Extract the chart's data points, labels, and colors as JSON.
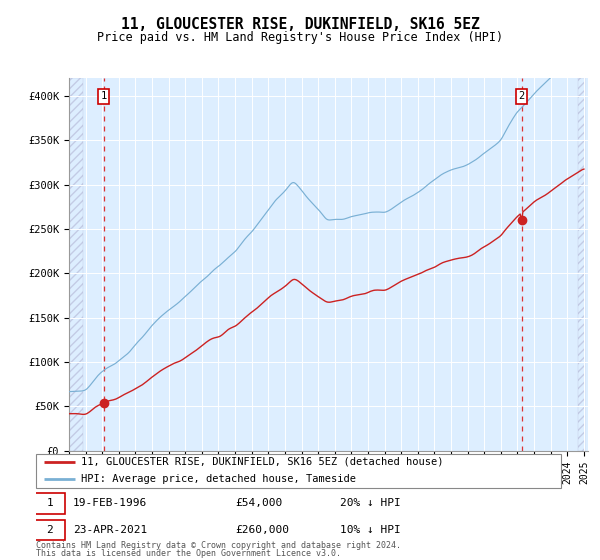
{
  "title": "11, GLOUCESTER RISE, DUKINFIELD, SK16 5EZ",
  "subtitle": "Price paid vs. HM Land Registry's House Price Index (HPI)",
  "legend_line1": "11, GLOUCESTER RISE, DUKINFIELD, SK16 5EZ (detached house)",
  "legend_line2": "HPI: Average price, detached house, Tameside",
  "footnote1": "Contains HM Land Registry data © Crown copyright and database right 2024.",
  "footnote2": "This data is licensed under the Open Government Licence v3.0.",
  "hpi_color": "#7ab0d4",
  "price_color": "#cc2222",
  "marker_color": "#cc2222",
  "bg_color": "#ddeeff",
  "grid_color": "#ffffff",
  "vline_color": "#dd3333",
  "ylim": [
    0,
    420000
  ],
  "yticks": [
    0,
    50000,
    100000,
    150000,
    200000,
    250000,
    300000,
    350000,
    400000
  ],
  "ytick_labels": [
    "£0",
    "£50K",
    "£100K",
    "£150K",
    "£200K",
    "£250K",
    "£300K",
    "£350K",
    "£400K"
  ],
  "sale1_year": 1996,
  "sale1_month": 2,
  "sale1_price": 54000,
  "sale2_year": 2021,
  "sale2_month": 4,
  "sale2_price": 260000,
  "sale1_info": "19-FEB-1996",
  "sale2_info": "23-APR-2021",
  "sale1_price_str": "£54,000",
  "sale2_price_str": "£260,000",
  "sale1_hpi": "20% ↓ HPI",
  "sale2_hpi": "10% ↓ HPI"
}
